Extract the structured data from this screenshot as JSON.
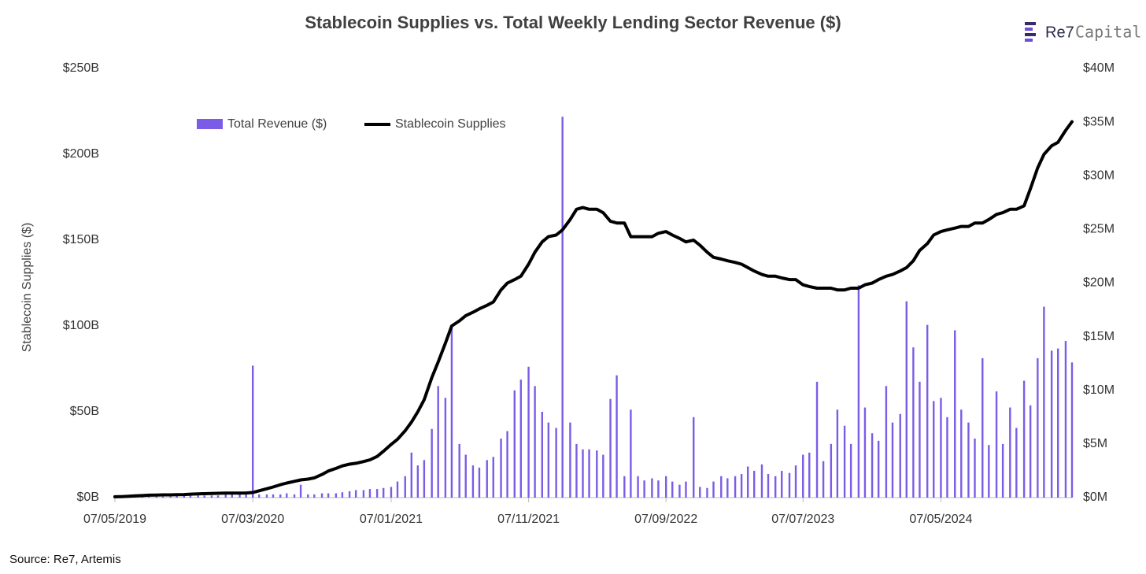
{
  "logo": {
    "brand": "Re7",
    "suffix": "Capital"
  },
  "source": "Source: Re7,  Artemis",
  "chart_data": {
    "type": "combo",
    "title": "Stablecoin Supplies vs. Total Weekly Lending Sector Revenue ($)",
    "y_label": "Stablecoin Supplies ($)",
    "legend": "top-left",
    "x": [
      "2019-05-07",
      "2019-05-21",
      "2019-06-07",
      "2019-06-21",
      "2019-07-07",
      "2019-07-21",
      "2019-08-07",
      "2019-08-21",
      "2019-09-07",
      "2019-09-21",
      "2019-10-07",
      "2019-10-21",
      "2019-11-07",
      "2019-11-21",
      "2019-12-07",
      "2019-12-21",
      "2020-01-07",
      "2020-01-21",
      "2020-02-07",
      "2020-02-21",
      "2020-03-07",
      "2020-03-21",
      "2020-04-07",
      "2020-04-21",
      "2020-05-07",
      "2020-05-21",
      "2020-06-07",
      "2020-06-21",
      "2020-07-07",
      "2020-07-21",
      "2020-08-07",
      "2020-08-21",
      "2020-09-07",
      "2020-09-21",
      "2020-10-07",
      "2020-10-21",
      "2020-11-07",
      "2020-11-21",
      "2020-12-07",
      "2020-12-21",
      "2021-01-07",
      "2021-01-21",
      "2021-02-07",
      "2021-02-21",
      "2021-03-07",
      "2021-03-21",
      "2021-04-07",
      "2021-04-21",
      "2021-05-07",
      "2021-05-21",
      "2021-06-07",
      "2021-06-21",
      "2021-07-07",
      "2021-07-21",
      "2021-08-07",
      "2021-08-21",
      "2021-09-07",
      "2021-09-21",
      "2021-10-07",
      "2021-10-21",
      "2021-11-07",
      "2021-11-21",
      "2021-12-07",
      "2021-12-21",
      "2022-01-07",
      "2022-01-21",
      "2022-02-07",
      "2022-02-21",
      "2022-03-07",
      "2022-03-21",
      "2022-04-07",
      "2022-04-21",
      "2022-05-07",
      "2022-05-21",
      "2022-06-07",
      "2022-06-21",
      "2022-07-07",
      "2022-07-21",
      "2022-08-07",
      "2022-08-21",
      "2022-09-07",
      "2022-09-21",
      "2022-10-07",
      "2022-10-21",
      "2022-11-07",
      "2022-11-21",
      "2022-12-07",
      "2022-12-21",
      "2023-01-07",
      "2023-01-21",
      "2023-02-07",
      "2023-02-21",
      "2023-03-07",
      "2023-03-21",
      "2023-04-07",
      "2023-04-21",
      "2023-05-07",
      "2023-05-21",
      "2023-06-07",
      "2023-06-21",
      "2023-07-07",
      "2023-07-21",
      "2023-08-07",
      "2023-08-21",
      "2023-09-07",
      "2023-09-21",
      "2023-10-07",
      "2023-10-21",
      "2023-11-07",
      "2023-11-21",
      "2023-12-07",
      "2023-12-21",
      "2024-01-07",
      "2024-01-21",
      "2024-02-07",
      "2024-02-21",
      "2024-03-07",
      "2024-03-21",
      "2024-04-07",
      "2024-04-21",
      "2024-05-07",
      "2024-05-21",
      "2024-06-07",
      "2024-06-21",
      "2024-07-07",
      "2024-07-21",
      "2024-08-07",
      "2024-08-21",
      "2024-09-07",
      "2024-09-21",
      "2024-10-07",
      "2024-10-21",
      "2024-11-07",
      "2024-11-21",
      "2024-12-07",
      "2024-12-21",
      "2025-01-07",
      "2025-01-21",
      "2025-02-07",
      "2025-02-21"
    ],
    "xlim": [
      "2019-05-07",
      "2025-02-21"
    ],
    "xticks": [
      {
        "value": "2019-05-07",
        "label": "07/05/2019"
      },
      {
        "value": "2020-03-07",
        "label": "07/03/2020"
      },
      {
        "value": "2021-01-07",
        "label": "07/01/2021"
      },
      {
        "value": "2021-11-07",
        "label": "07/11/2021"
      },
      {
        "value": "2022-09-07",
        "label": "07/09/2022"
      },
      {
        "value": "2023-07-07",
        "label": "07/07/2023"
      },
      {
        "value": "2024-05-07",
        "label": "07/05/2024"
      }
    ],
    "ylim": [
      0,
      250
    ],
    "yticks": [
      {
        "value": 0,
        "label": "$0B"
      },
      {
        "value": 50,
        "label": "$50B"
      },
      {
        "value": 100,
        "label": "$100B"
      },
      {
        "value": 150,
        "label": "$150B"
      },
      {
        "value": 200,
        "label": "$200B"
      },
      {
        "value": 250,
        "label": "$250B"
      }
    ],
    "y2lim": [
      0,
      40
    ],
    "y2ticks": [
      {
        "value": 0,
        "label": "$0M"
      },
      {
        "value": 5,
        "label": "$5M"
      },
      {
        "value": 10,
        "label": "$10M"
      },
      {
        "value": 15,
        "label": "$15M"
      },
      {
        "value": 20,
        "label": "$20M"
      },
      {
        "value": 25,
        "label": "$25M"
      },
      {
        "value": 30,
        "label": "$30M"
      },
      {
        "value": 35,
        "label": "$35M"
      },
      {
        "value": 40,
        "label": "$40M"
      }
    ],
    "series": [
      {
        "name": "Total Revenue ($)",
        "type": "bar",
        "axis": "y2",
        "color": "#7b5ce6",
        "values": [
          0.1,
          0.1,
          0.1,
          0.1,
          0.1,
          0.1,
          0.1,
          0.1,
          0.1,
          0.2,
          0.2,
          0.2,
          0.2,
          0.2,
          0.2,
          0.2,
          0.3,
          0.3,
          0.3,
          0.3,
          12.3,
          0.3,
          0.3,
          0.3,
          0.3,
          0.4,
          0.3,
          1.2,
          0.3,
          0.3,
          0.4,
          0.4,
          0.4,
          0.5,
          0.6,
          0.7,
          0.7,
          0.8,
          0.8,
          0.9,
          1.0,
          1.5,
          2.0,
          4.2,
          3.0,
          3.5,
          6.4,
          10.4,
          9.3,
          16.0,
          5.0,
          4.0,
          3.0,
          2.8,
          3.5,
          3.8,
          5.5,
          6.2,
          10.0,
          11.0,
          12.2,
          10.4,
          8.0,
          7.0,
          6.5,
          35.5,
          7.0,
          5.0,
          4.5,
          4.5,
          4.4,
          4.0,
          9.2,
          11.4,
          2.0,
          8.2,
          2.0,
          1.6,
          1.8,
          1.6,
          2.0,
          1.5,
          1.2,
          1.5,
          7.5,
          1.0,
          0.9,
          1.5,
          2.0,
          1.8,
          2.0,
          2.2,
          2.9,
          2.5,
          3.1,
          2.2,
          2.0,
          2.5,
          2.3,
          3.0,
          4.0,
          4.2,
          10.8,
          3.4,
          5.0,
          8.2,
          6.7,
          5.0,
          19.8,
          8.4,
          6.0,
          5.3,
          10.4,
          7.0,
          7.8,
          18.3,
          14.0,
          10.8,
          16.1,
          9.0,
          9.3,
          7.5,
          15.6,
          8.2,
          7.0,
          5.5,
          13.0,
          4.9,
          9.9,
          5.0,
          8.4,
          6.5,
          10.9,
          8.6,
          13.0,
          17.8,
          13.7,
          13.9,
          14.6,
          12.6
        ]
      },
      {
        "name": "Stablecoin Supplies",
        "type": "line",
        "axis": "y",
        "color": "#000000",
        "values": [
          0.5,
          0.6,
          0.8,
          1.0,
          1.2,
          1.4,
          1.5,
          1.6,
          1.6,
          1.7,
          1.8,
          2.0,
          2.2,
          2.3,
          2.4,
          2.5,
          2.6,
          2.6,
          2.6,
          2.7,
          3.0,
          4.0,
          5.2,
          6.2,
          7.5,
          8.5,
          9.5,
          10.3,
          10.8,
          11.5,
          13.5,
          15.5,
          17.0,
          18.5,
          19.5,
          20.0,
          21.0,
          22.0,
          24.0,
          27.0,
          31,
          34,
          39,
          44,
          50,
          57,
          70,
          79,
          90,
          100,
          103,
          106,
          108,
          110,
          112,
          114,
          121,
          125,
          127,
          129,
          136,
          143,
          149,
          152,
          153,
          156,
          162,
          168,
          169,
          168,
          168,
          166,
          161,
          160,
          160,
          152,
          152,
          152,
          152,
          154,
          155,
          153,
          151,
          149,
          150,
          147,
          143,
          140,
          139,
          138,
          137,
          136,
          134,
          132,
          130,
          129,
          129,
          128,
          127,
          127,
          124,
          123,
          122,
          122,
          122,
          121,
          121,
          122,
          122,
          124,
          125,
          127,
          129,
          130,
          132,
          134,
          138,
          144,
          148,
          153,
          155,
          156,
          157,
          158,
          158,
          160,
          160,
          162,
          165,
          166,
          168,
          168,
          170,
          180,
          192,
          200,
          205,
          207,
          214,
          219
        ]
      }
    ]
  }
}
